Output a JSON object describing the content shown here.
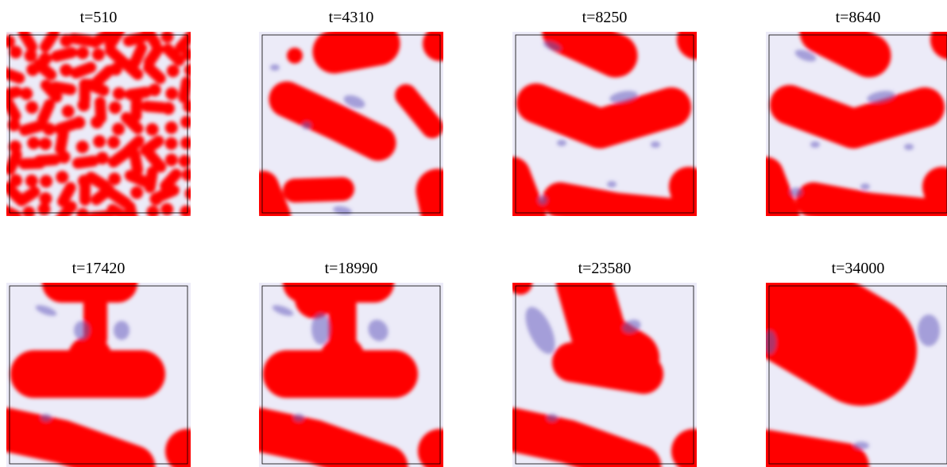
{
  "panels": [
    {
      "title": "t=510"
    },
    {
      "title": "t=4310"
    },
    {
      "title": "t=8250"
    },
    {
      "title": "t=8640"
    },
    {
      "title": "t=17420"
    },
    {
      "title": "t=18990"
    },
    {
      "title": "t=23580"
    },
    {
      "title": "t=34000"
    }
  ]
}
